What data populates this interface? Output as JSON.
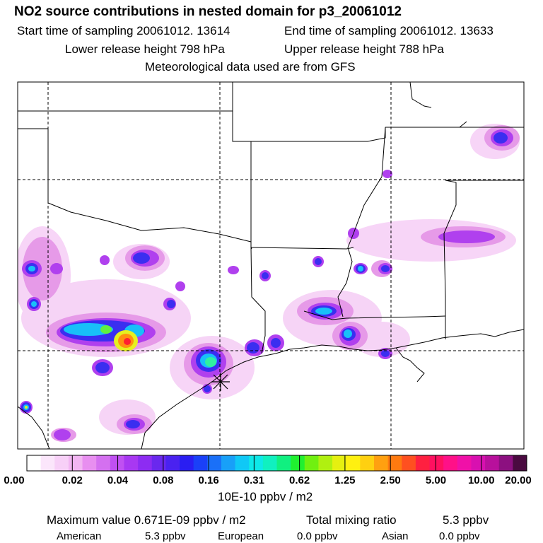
{
  "header": {
    "title": "NO2 source contributions in nested domain for p3_20061012",
    "start_label": "Start time of sampling 20061012. 13614",
    "end_label": "End time of sampling 20061012. 13633",
    "lower_label": "Lower release height  798 hPa",
    "upper_label": "Upper release height  788 hPa",
    "met_label": "Meteorological data used are from GFS"
  },
  "colorbar": {
    "tick_labels": [
      "0.00",
      "0.02",
      "0.04",
      "0.08",
      "0.16",
      "0.31",
      "0.62",
      "1.25",
      "2.50",
      "5.00",
      "10.00",
      "20.00"
    ],
    "colors": [
      "#ffffff",
      "#fbe6fb",
      "#f7d0f7",
      "#f2b6f2",
      "#e88ff0",
      "#d470f0",
      "#c050f2",
      "#a838f2",
      "#8d2cf2",
      "#6a28ee",
      "#4a22f0",
      "#2a1ef2",
      "#1a40f8",
      "#1a70f8",
      "#18a0f8",
      "#10c8f6",
      "#0ee8e8",
      "#10f0c0",
      "#10f080",
      "#20f030",
      "#70f010",
      "#b0f010",
      "#e6f010",
      "#fff010",
      "#ffd010",
      "#ffa010",
      "#ff7a10",
      "#ff5020",
      "#ff2040",
      "#ff1060",
      "#ff1088",
      "#f010a8",
      "#d810b0",
      "#b8109c",
      "#8c1080",
      "#4a0a40"
    ],
    "unit_label": "10E-10 ppbv / m2"
  },
  "footer": {
    "max_label": "Maximum value  0.671E-09 ppbv / m2",
    "total_label": "Total mixing ratio",
    "total_value": "5.3 ppbv",
    "contributions": [
      {
        "name": "American",
        "value": "5.3 ppbv"
      },
      {
        "name": "European",
        "value": "0.0 ppbv"
      },
      {
        "name": "Asian",
        "value": "0.0 ppbv"
      }
    ]
  },
  "map": {
    "receptor_marker": "star-icon",
    "plume_colors": {
      "faint": "#f6c8f6",
      "light": "#e69ae8",
      "purple": "#b040ee",
      "blue": "#3b2ef0",
      "cyan": "#18b8f8",
      "green": "#40f060",
      "yellow": "#f0f020",
      "orange": "#ff7a10",
      "red": "#ff2030"
    }
  }
}
